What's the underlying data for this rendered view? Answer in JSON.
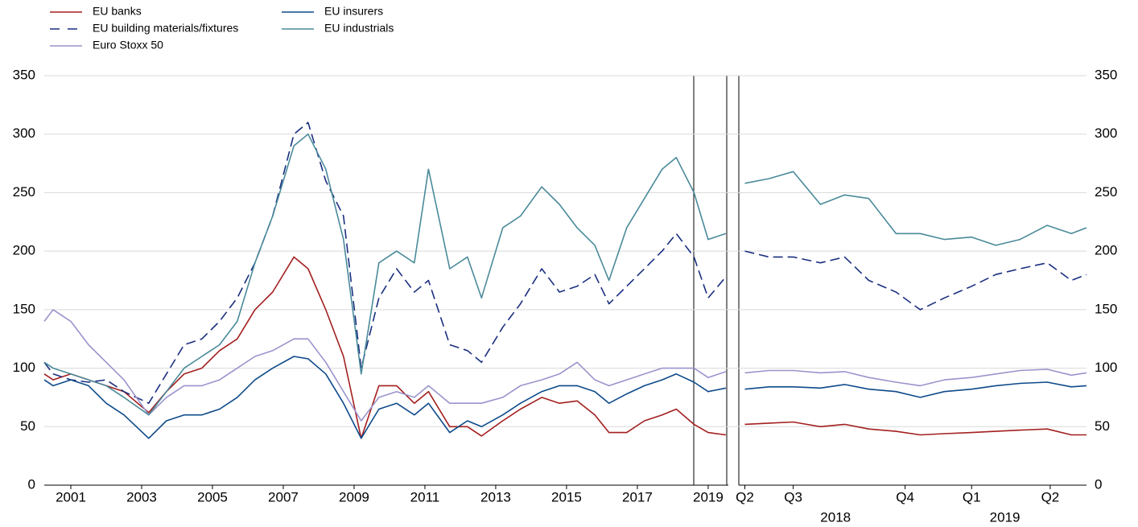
{
  "chart_data": [
    {
      "type": "line",
      "x": [
        2000.25,
        2000.5,
        2001,
        2001.5,
        2002,
        2002.5,
        2003.2,
        2003.7,
        2004.2,
        2004.7,
        2005.2,
        2005.7,
        2006.2,
        2006.7,
        2007.3,
        2007.7,
        2008.2,
        2008.7,
        2009.2,
        2009.7,
        2010.2,
        2010.7,
        2011.1,
        2011.7,
        2012.2,
        2012.6,
        2013.2,
        2013.7,
        2014.3,
        2014.8,
        2015.3,
        2015.8,
        2016.2,
        2016.7,
        2017.2,
        2017.7,
        2018.1,
        2018.6,
        2019.0,
        2019.5
      ],
      "xlim": [
        2000.25,
        2019.57
      ],
      "xticks": [
        2001,
        2003,
        2005,
        2007,
        2009,
        2011,
        2013,
        2015,
        2017,
        2019
      ],
      "ylim": [
        0,
        350
      ],
      "yticks": [
        0,
        50,
        100,
        150,
        200,
        250,
        300,
        350
      ],
      "grid": true,
      "series": [
        {
          "name": "EU banks",
          "color": "#a31f1f",
          "dashed": false,
          "values": [
            95,
            90,
            95,
            90,
            85,
            80,
            62,
            80,
            95,
            100,
            115,
            125,
            150,
            165,
            195,
            185,
            150,
            110,
            40,
            85,
            85,
            70,
            80,
            50,
            50,
            42,
            55,
            65,
            75,
            70,
            72,
            60,
            45,
            45,
            55,
            60,
            65,
            52,
            45,
            43
          ]
        },
        {
          "name": "EU building materials/fixtures",
          "color": "#1a2f80",
          "dashed": true,
          "values": [
            105,
            95,
            90,
            88,
            90,
            80,
            70,
            95,
            120,
            125,
            140,
            160,
            190,
            230,
            300,
            310,
            260,
            230,
            100,
            160,
            185,
            165,
            175,
            120,
            115,
            105,
            135,
            155,
            185,
            165,
            170,
            180,
            155,
            170,
            185,
            200,
            215,
            195,
            160,
            178
          ]
        },
        {
          "name": "Euro Stoxx 50",
          "color": "#9a94cc",
          "dashed": false,
          "values": [
            140,
            150,
            140,
            120,
            105,
            90,
            60,
            75,
            85,
            85,
            90,
            100,
            110,
            115,
            125,
            125,
            105,
            80,
            55,
            75,
            80,
            75,
            85,
            70,
            70,
            70,
            75,
            85,
            90,
            95,
            105,
            90,
            85,
            90,
            95,
            100,
            100,
            100,
            92,
            97
          ]
        },
        {
          "name": "EU insurers",
          "color": "#0e4a8a",
          "dashed": false,
          "values": [
            90,
            85,
            90,
            85,
            70,
            60,
            40,
            55,
            60,
            60,
            65,
            75,
            90,
            100,
            110,
            108,
            95,
            70,
            40,
            65,
            70,
            60,
            70,
            45,
            55,
            50,
            60,
            70,
            80,
            85,
            85,
            80,
            70,
            78,
            85,
            90,
            95,
            88,
            80,
            83
          ]
        },
        {
          "name": "EU industrials",
          "color": "#4a8a9a",
          "dashed": false,
          "values": [
            105,
            100,
            95,
            90,
            85,
            75,
            60,
            80,
            100,
            110,
            120,
            140,
            190,
            230,
            290,
            300,
            270,
            210,
            95,
            190,
            200,
            190,
            270,
            185,
            195,
            160,
            220,
            230,
            255,
            240,
            220,
            205,
            175,
            220,
            245,
            270,
            280,
            250,
            210,
            215
          ]
        }
      ]
    },
    {
      "type": "line",
      "x": [
        2018.42,
        2018.5,
        2018.58,
        2018.67,
        2018.75,
        2018.83,
        2018.92,
        2019.0,
        2019.08,
        2019.17,
        2019.25,
        2019.33,
        2019.42,
        2019.5,
        2019.55
      ],
      "xlim": [
        2018.4,
        2019.55
      ],
      "xticks": [
        {
          "value": 2018.42,
          "label": "Q2"
        },
        {
          "value": 2018.58,
          "label": "Q3"
        },
        {
          "value": 2018.95,
          "label": "Q4"
        },
        {
          "value": 2019.17,
          "label": "Q1"
        },
        {
          "value": 2019.43,
          "label": "Q2"
        }
      ],
      "year_labels": [
        {
          "value": 2018.72,
          "label": "2018"
        },
        {
          "value": 2019.28,
          "label": "2019"
        }
      ],
      "ylim": [
        0,
        350
      ],
      "yticks": [
        0,
        50,
        100,
        150,
        200,
        250,
        300,
        350
      ],
      "yaxis": "right",
      "series": [
        {
          "color": "#a31f1f",
          "dashed": false,
          "values": [
            52,
            53,
            54,
            50,
            52,
            48,
            46,
            43,
            44,
            45,
            46,
            47,
            48,
            43,
            43
          ]
        },
        {
          "color": "#1a2f80",
          "dashed": true,
          "values": [
            200,
            195,
            195,
            190,
            195,
            175,
            165,
            150,
            160,
            170,
            180,
            185,
            190,
            175,
            180
          ]
        },
        {
          "color": "#9a94cc",
          "dashed": false,
          "values": [
            96,
            98,
            98,
            96,
            97,
            92,
            88,
            85,
            90,
            92,
            95,
            98,
            99,
            94,
            96
          ]
        },
        {
          "color": "#0e4a8a",
          "dashed": false,
          "values": [
            82,
            84,
            84,
            83,
            86,
            82,
            80,
            75,
            80,
            82,
            85,
            87,
            88,
            84,
            85
          ]
        },
        {
          "color": "#4a8a9a",
          "dashed": false,
          "values": [
            258,
            262,
            268,
            240,
            248,
            245,
            215,
            215,
            210,
            212,
            205,
            210,
            222,
            215,
            220
          ]
        }
      ]
    }
  ]
}
